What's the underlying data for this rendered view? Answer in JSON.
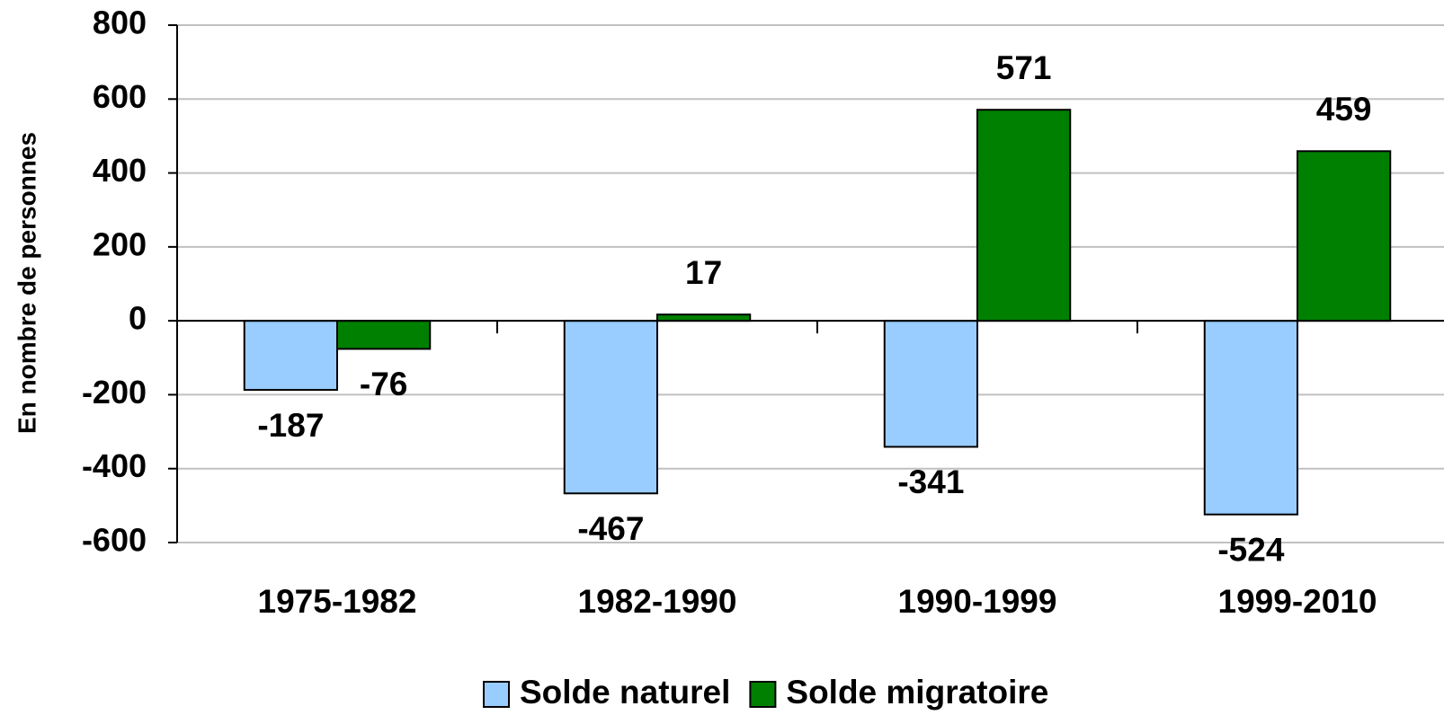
{
  "chart_data": {
    "type": "bar",
    "y_label": "En nombre de personnes",
    "categories": [
      "1975-1982",
      "1982-1990",
      "1990-1999",
      "1999-2010"
    ],
    "series": [
      {
        "name": "Solde naturel",
        "color": "#99ccff",
        "values": [
          -187,
          -467,
          -341,
          -524
        ]
      },
      {
        "name": "Solde migratoire",
        "color": "#008000",
        "values": [
          -76,
          17,
          571,
          459
        ]
      }
    ],
    "ylim": [
      -600,
      800
    ],
    "yticks": [
      -600,
      -400,
      -200,
      0,
      200,
      400,
      600,
      800
    ],
    "grid": true,
    "legend": "bottom"
  }
}
